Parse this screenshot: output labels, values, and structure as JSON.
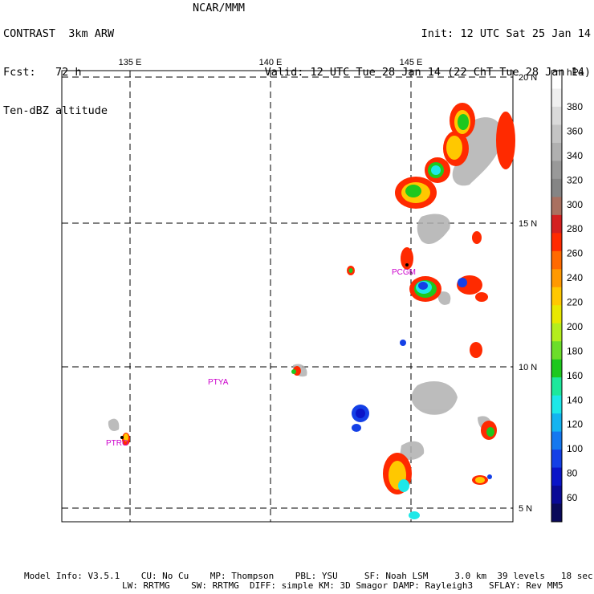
{
  "header": {
    "left": [
      "CONTRAST  3km ARW",
      "Fcst:   72 h",
      "Ten-dBZ altitude"
    ],
    "center": "NCAR/MMM",
    "right": [
      "Init: 12 UTC Sat 25 Jan 14",
      "Valid: 12 UTC Tue 28 Jan 14 (22 ChT Tue 28 Jan 14)"
    ]
  },
  "map": {
    "lon_labels": [
      "135 E",
      "140 E",
      "145 E"
    ],
    "lat_labels": [
      "20 N",
      "15 N",
      "10 N",
      "5 N"
    ],
    "stations": [
      "PCGM",
      "PTYA",
      "PTRO"
    ]
  },
  "colorbar": {
    "unit": "hPa",
    "labels": [
      "380",
      "360",
      "340",
      "320",
      "300",
      "280",
      "260",
      "240",
      "220",
      "200",
      "180",
      "160",
      "140",
      "120",
      "100",
      "80",
      "60"
    ],
    "colors": [
      "#ffffff",
      "#efefef",
      "#dadada",
      "#c4c4c4",
      "#b0b0b0",
      "#999999",
      "#858585",
      "#a97060",
      "#d42020",
      "#ff2a00",
      "#ff6a00",
      "#ff9900",
      "#ffc800",
      "#e8e800",
      "#b4ee1e",
      "#6cde2a",
      "#1ec81e",
      "#1ee89c",
      "#1ee8e8",
      "#14b4f0",
      "#1478f0",
      "#1440e6",
      "#0a14c8",
      "#0a0a96",
      "#0a0a5a"
    ]
  },
  "footer": {
    "line1": "Model Info: V3.5.1    CU: No Cu    MP: Thompson    PBL: YSU     SF: Noah LSM     3.0 km  39 levels   18 sec",
    "line2": "LW: RRTMG    SW: RRTMG  DIFF: simple KM: 3D Smagor DAMP: Rayleigh3   SFLAY: Rev MM5"
  }
}
